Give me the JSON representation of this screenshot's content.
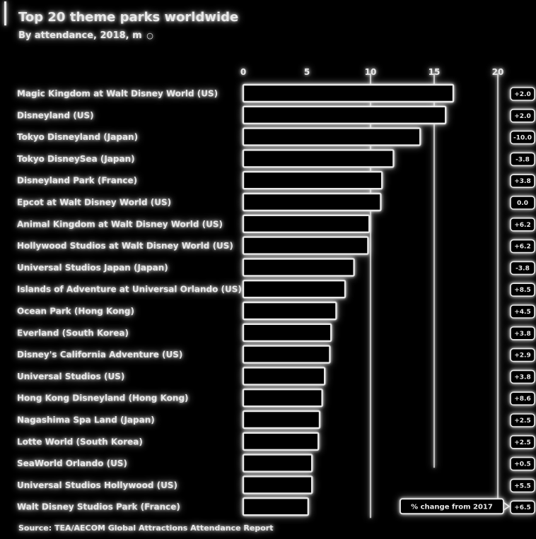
{
  "header": {
    "title": "Top 20 theme parks worldwide",
    "subtitle": "By attendance, 2018, m",
    "info_icon": "info-circle-icon"
  },
  "footer": {
    "source": "Source: TEA/AECOM Global Attractions Attendance Report"
  },
  "colors": {
    "background": "#000000",
    "foreground": "#e8e8e8",
    "glow": "#ffffff"
  },
  "chart_data": {
    "type": "bar",
    "orientation": "horizontal",
    "title": "Top 20 theme parks worldwide",
    "subtitle": "By attendance, 2018, m",
    "xlim": [
      0,
      20
    ],
    "x_ticks": [
      "0",
      "5",
      "10",
      "15",
      "20"
    ],
    "grid": "vertical lines at 10, 15 and 20",
    "categories": [
      "Magic Kingdom at Walt Disney World (US)",
      "Disneyland (US)",
      "Tokyo Disneyland (Japan)",
      "Tokyo DisneySea (Japan)",
      "Disneyland Park (France)",
      "Epcot at Walt Disney World (US)",
      "Animal Kingdom at Walt Disney World (US)",
      "Hollywood Studios at Walt Disney World (US)",
      "Universal Studios Japan (Japan)",
      "Islands of Adventure at Universal Orlando (US)",
      "Ocean Park (Hong Kong)",
      "Everland (South Korea)",
      "Disney's California Adventure (US)",
      "Universal Studios (US)",
      "Hong Kong Disneyland (Hong Kong)",
      "Nagashima Spa Land (Japan)",
      "Lotte World (South Korea)",
      "SeaWorld Orlando (US)",
      "Universal Studios Hollywood (US)",
      "Walt Disney Studios Park (France)"
    ],
    "values": [
      16.5,
      15.9,
      13.9,
      11.8,
      10.9,
      10.8,
      9.9,
      9.8,
      8.7,
      8.0,
      7.3,
      6.9,
      6.8,
      6.4,
      6.2,
      6.0,
      5.9,
      5.4,
      5.4,
      5.1
    ],
    "change_labels": [
      "+2.0",
      "+2.0",
      "-10.0",
      "-3.8",
      "+3.8",
      "0.0",
      "+6.2",
      "+6.2",
      "-3.8",
      "+8.5",
      "+4.5",
      "+3.8",
      "+2.9",
      "+3.8",
      "+8.6",
      "+2.5",
      "+2.5",
      "+0.5",
      "+5.5",
      "+6.5"
    ],
    "annotation": "% change from 2017"
  }
}
